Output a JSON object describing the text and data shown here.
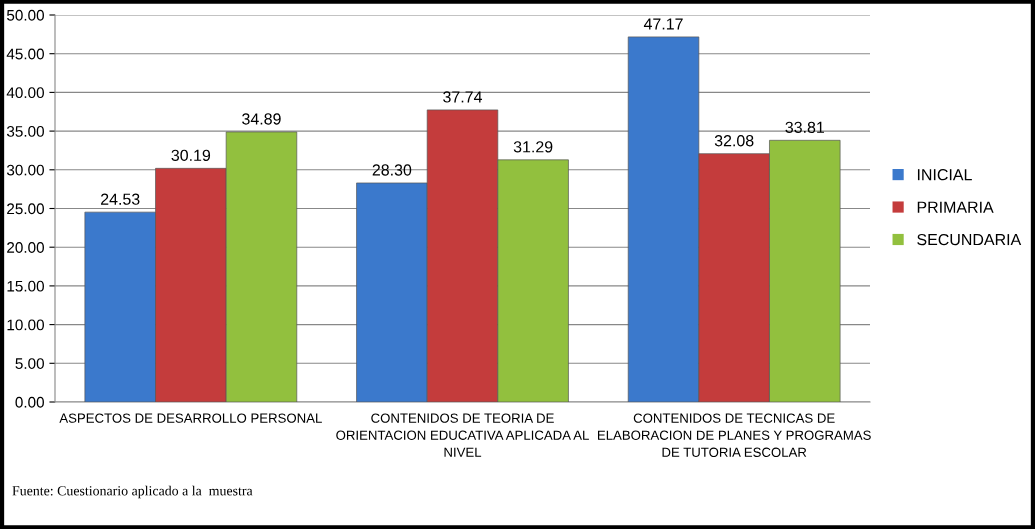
{
  "chart_data": {
    "type": "bar",
    "categories": [
      "ASPECTOS DE DESARROLLO PERSONAL",
      "CONTENIDOS DE TEORIA DE\nORIENTACION EDUCATIVA APLICADA AL\nNIVEL",
      "CONTENIDOS DE TECNICAS DE\nELABORACION DE PLANES Y PROGRAMAS\nDE TUTORIA ESCOLAR"
    ],
    "series": [
      {
        "name": "INICIAL",
        "color": "#3b79cc",
        "values": [
          24.53,
          28.3,
          47.17
        ],
        "value_labels": [
          "24.53",
          "28.30",
          "47.17"
        ]
      },
      {
        "name": "PRIMARIA",
        "color": "#c43c3c",
        "values": [
          30.19,
          37.74,
          32.08
        ],
        "value_labels": [
          "30.19",
          "37.74",
          "32.08"
        ]
      },
      {
        "name": "SECUNDARIA",
        "color": "#92c03e",
        "values": [
          34.89,
          31.29,
          33.81
        ],
        "value_labels": [
          "34.89",
          "31.29",
          "33.81"
        ]
      }
    ],
    "ylim": [
      0,
      50
    ],
    "yticks": [
      {
        "value": 0,
        "label": "0.00"
      },
      {
        "value": 5,
        "label": "5.00"
      },
      {
        "value": 10,
        "label": "10.00"
      },
      {
        "value": 15,
        "label": "15.00"
      },
      {
        "value": 20,
        "label": "20.00"
      },
      {
        "value": 25,
        "label": "25.00"
      },
      {
        "value": 30,
        "label": "30.00"
      },
      {
        "value": 35,
        "label": "35.00"
      },
      {
        "value": 40,
        "label": "40.00"
      },
      {
        "value": 45,
        "label": "45.00"
      },
      {
        "value": 50,
        "label": "50.00"
      }
    ],
    "grid": "y",
    "legend": "right",
    "annotations": [
      "Fuente: Cuestionario aplicado a la  muestra"
    ]
  }
}
